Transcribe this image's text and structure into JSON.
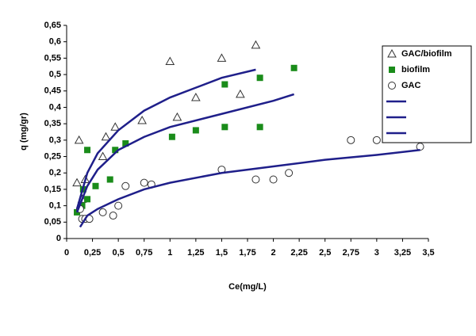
{
  "chart_data": {
    "type": "scatter",
    "xlabel": "Ce(mg/L)",
    "ylabel": "q (mg/gr)",
    "xlim": [
      0,
      3.5
    ],
    "xticks": [
      0,
      {
        "value": 0.25,
        "label": "0,25"
      },
      {
        "value": 0.5,
        "label": "0,5"
      },
      {
        "value": 0.75,
        "label": "0,75"
      },
      1,
      {
        "value": 1.25,
        "label": "1,25"
      },
      {
        "value": 1.5,
        "label": "1,5"
      },
      {
        "value": 1.75,
        "label": "1,75"
      },
      2,
      {
        "value": 2.25,
        "label": "2,25"
      },
      {
        "value": 2.5,
        "label": "2,5"
      },
      {
        "value": 2.75,
        "label": "2,75"
      },
      3,
      {
        "value": 3.25,
        "label": "3,25"
      },
      {
        "value": 3.5,
        "label": "3,5"
      }
    ],
    "ylim": [
      0,
      0.65
    ],
    "yticks": [
      0,
      {
        "value": 0.05,
        "label": "0,05"
      },
      {
        "value": 0.1,
        "label": "0,1"
      },
      {
        "value": 0.15,
        "label": "0,15"
      },
      {
        "value": 0.2,
        "label": "0,2"
      },
      {
        "value": 0.25,
        "label": "0,25"
      },
      {
        "value": 0.3,
        "label": "0,3"
      },
      {
        "value": 0.35,
        "label": "0,35"
      },
      {
        "value": 0.4,
        "label": "0,4"
      },
      {
        "value": 0.45,
        "label": "0,45"
      },
      {
        "value": 0.5,
        "label": "0,5"
      },
      {
        "value": 0.55,
        "label": "0,55"
      },
      {
        "value": 0.6,
        "label": "0,6"
      },
      {
        "value": 0.65,
        "label": "0,65"
      }
    ],
    "series": [
      {
        "name": "GAC/biofilm",
        "marker": "triangle",
        "color": "#333333",
        "x": [
          0.1,
          0.12,
          0.15,
          0.18,
          0.35,
          0.38,
          0.47,
          0.73,
          1.0,
          1.07,
          1.25,
          1.5,
          1.68,
          1.83
        ],
        "values": [
          0.17,
          0.3,
          0.12,
          0.18,
          0.25,
          0.31,
          0.34,
          0.36,
          0.54,
          0.37,
          0.43,
          0.55,
          0.44,
          0.59
        ]
      },
      {
        "name": "biofilm",
        "marker": "square",
        "color": "#1a8c1a",
        "x": [
          0.1,
          0.15,
          0.16,
          0.2,
          0.2,
          0.28,
          0.42,
          0.47,
          0.57,
          1.02,
          1.25,
          1.53,
          1.53,
          1.87,
          1.87,
          2.2
        ],
        "values": [
          0.08,
          0.1,
          0.15,
          0.12,
          0.27,
          0.16,
          0.18,
          0.27,
          0.29,
          0.31,
          0.33,
          0.47,
          0.34,
          0.34,
          0.49,
          0.52
        ]
      },
      {
        "name": "GAC",
        "marker": "circle",
        "color": "#333333",
        "x": [
          0.13,
          0.15,
          0.18,
          0.22,
          0.35,
          0.45,
          0.5,
          0.57,
          0.75,
          0.82,
          1.5,
          1.83,
          2.0,
          2.15,
          2.75,
          3.0,
          3.42
        ],
        "values": [
          0.09,
          0.06,
          0.06,
          0.06,
          0.08,
          0.07,
          0.1,
          0.16,
          0.17,
          0.165,
          0.21,
          0.18,
          0.18,
          0.2,
          0.3,
          0.3,
          0.28
        ]
      },
      {
        "marker": "line",
        "color": "#1f1f8a",
        "x": [
          0.1,
          0.2,
          0.3,
          0.5,
          0.75,
          1,
          1.25,
          1.5,
          1.83
        ],
        "values": [
          0.09,
          0.2,
          0.26,
          0.33,
          0.39,
          0.43,
          0.46,
          0.49,
          0.515
        ]
      },
      {
        "marker": "line",
        "color": "#1f1f8a",
        "x": [
          0.1,
          0.2,
          0.3,
          0.5,
          0.75,
          1,
          1.5,
          2,
          2.2
        ],
        "values": [
          0.08,
          0.16,
          0.21,
          0.27,
          0.31,
          0.34,
          0.38,
          0.42,
          0.44
        ]
      },
      {
        "marker": "line",
        "color": "#1f1f8a",
        "x": [
          0.13,
          0.2,
          0.3,
          0.5,
          0.75,
          1,
          1.5,
          2,
          2.5,
          3,
          3.42
        ],
        "values": [
          0.035,
          0.07,
          0.09,
          0.12,
          0.15,
          0.17,
          0.2,
          0.22,
          0.24,
          0.255,
          0.27
        ]
      }
    ]
  }
}
